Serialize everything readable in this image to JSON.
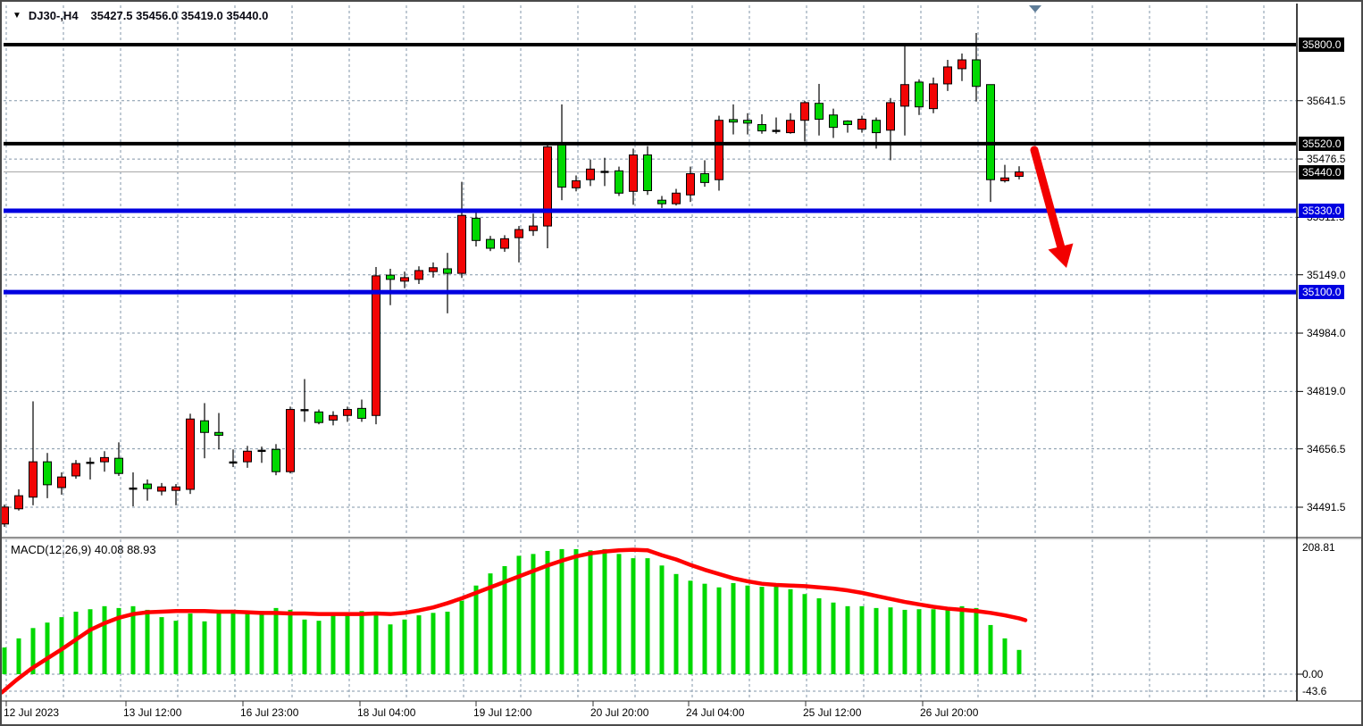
{
  "window": {
    "title_symbol": "DJ30-,H4",
    "title_ohlc": "35427.5 35456.0 35419.0 35440.0",
    "triangle_glyph": "▼"
  },
  "colors": {
    "bull": "#00d800",
    "bear": "#f20505",
    "doji": "#000000",
    "macd_bar": "#00d800",
    "macd_signal": "#ff0000",
    "level_black": "#000000",
    "level_blue": "#0000e0",
    "current_price_line": "#a8a8a8",
    "grid": "#8195a8",
    "arrow": "#f20000",
    "bar_marker": "#5f7d98"
  },
  "macd_panel": {
    "label": "MACD(12,26,9) 40.08 88.93",
    "axis_labels": [
      {
        "text": "208.81",
        "value": 208.81
      },
      {
        "text": "0.00",
        "value": 0
      },
      {
        "text": "-43.6",
        "value": -43.6
      }
    ]
  },
  "price_axis": {
    "plain_labels": [
      {
        "text": "35641.5",
        "price": 35641.5
      },
      {
        "text": "35476.5",
        "price": 35476.5
      },
      {
        "text": "35311.5",
        "price": 35311.5
      },
      {
        "text": "35149.0",
        "price": 35149.0
      },
      {
        "text": "34984.0",
        "price": 34984.0
      },
      {
        "text": "34819.0",
        "price": 34819.0
      },
      {
        "text": "34656.5",
        "price": 34656.5
      },
      {
        "text": "34491.5",
        "price": 34491.5
      }
    ],
    "badge_labels": [
      {
        "text": "35800.0",
        "price": 35800.0,
        "style": "badge-black"
      },
      {
        "text": "35520.0",
        "price": 35520.0,
        "style": "badge-black"
      },
      {
        "text": "35440.0",
        "price": 35440.0,
        "style": "badge-black"
      },
      {
        "text": "35330.0",
        "price": 35330.0,
        "style": "badge-blue"
      },
      {
        "text": "35100.0",
        "price": 35100.0,
        "style": "badge-blue"
      }
    ]
  },
  "time_axis": {
    "labels": [
      {
        "text": "12 Jul 2023",
        "x": 5
      },
      {
        "text": "13 Jul 12:00",
        "x": 139
      },
      {
        "text": "16 Jul 23:00",
        "x": 270
      },
      {
        "text": "18 Jul 04:00",
        "x": 401
      },
      {
        "text": "19 Jul 12:00",
        "x": 531
      },
      {
        "text": "20 Jul 20:00",
        "x": 662
      },
      {
        "text": "24 Jul 04:00",
        "x": 769
      },
      {
        "text": "25 Jul 12:00",
        "x": 900
      },
      {
        "text": "26 Jul 20:00",
        "x": 1031
      }
    ]
  },
  "chart_data": [
    {
      "type": "candlestick",
      "symbol": "DJ30-",
      "timeframe": "H4",
      "title": "DJ30-,H4 35427.5 35456.0 35419.0 35440.0",
      "last_ohlc": {
        "open": 35427.5,
        "high": 35456.0,
        "low": 35419.0,
        "close": 35440.0
      },
      "ylim": [
        34400,
        35920
      ],
      "grid": true,
      "levels": [
        {
          "price": 35800.0,
          "color": "black",
          "thickness": 4
        },
        {
          "price": 35520.0,
          "color": "black",
          "thickness": 4
        },
        {
          "price": 35330.0,
          "color": "blue",
          "thickness": 5
        },
        {
          "price": 35100.0,
          "color": "blue",
          "thickness": 5
        }
      ],
      "current_price": 35440.0,
      "annotation_arrow": {
        "from_price": 35505,
        "to_price": 35170,
        "direction": "down-right"
      },
      "candles": [
        [
          34492,
          34499,
          34436,
          34444,
          "d"
        ],
        [
          34524,
          34542,
          34482,
          34487,
          "d"
        ],
        [
          34620,
          34791,
          34497,
          34520,
          "d"
        ],
        [
          34555,
          34645,
          34517,
          34620,
          "u"
        ],
        [
          34577,
          34590,
          34527,
          34547,
          "d"
        ],
        [
          34615,
          34625,
          34572,
          34580,
          "d"
        ],
        [
          34622,
          34632,
          34570,
          34617,
          "j"
        ],
        [
          34632,
          34650,
          34592,
          34620,
          "d"
        ],
        [
          34587,
          34675,
          34580,
          34630,
          "u"
        ],
        [
          34547,
          34590,
          34494,
          34544,
          "j"
        ],
        [
          34544,
          34570,
          34510,
          34557,
          "u"
        ],
        [
          34549,
          34560,
          34525,
          34537,
          "d"
        ],
        [
          34549,
          34557,
          34497,
          34539,
          "d"
        ],
        [
          34741,
          34756,
          34529,
          34542,
          "d"
        ],
        [
          34703,
          34786,
          34630,
          34736,
          "u"
        ],
        [
          34695,
          34758,
          34655,
          34703,
          "u"
        ],
        [
          34622,
          34655,
          34605,
          34618,
          "j"
        ],
        [
          34650,
          34665,
          34603,
          34620,
          "d"
        ],
        [
          34653,
          34663,
          34617,
          34651,
          "j"
        ],
        [
          34592,
          34670,
          34582,
          34655,
          "u"
        ],
        [
          34768,
          34776,
          34587,
          34592,
          "d"
        ],
        [
          34768,
          34854,
          34733,
          34766,
          "j"
        ],
        [
          34731,
          34768,
          34726,
          34761,
          "u"
        ],
        [
          34751,
          34763,
          34723,
          34738,
          "d"
        ],
        [
          34768,
          34776,
          34733,
          34751,
          "d"
        ],
        [
          34743,
          34796,
          34733,
          34771,
          "u"
        ],
        [
          35146,
          35171,
          34726,
          34751,
          "d"
        ],
        [
          35136,
          35166,
          35063,
          35148,
          "u"
        ],
        [
          35141,
          35158,
          35111,
          35131,
          "d"
        ],
        [
          35161,
          35173,
          35123,
          35136,
          "d"
        ],
        [
          35169,
          35184,
          35141,
          35158,
          "d"
        ],
        [
          35153,
          35211,
          35040,
          35166,
          "u"
        ],
        [
          35317,
          35412,
          35140,
          35153,
          "d"
        ],
        [
          35246,
          35324,
          35229,
          35309,
          "u"
        ],
        [
          35224,
          35259,
          35216,
          35249,
          "u"
        ],
        [
          35251,
          35261,
          35214,
          35224,
          "d"
        ],
        [
          35277,
          35287,
          35184,
          35254,
          "d"
        ],
        [
          35287,
          35322,
          35259,
          35274,
          "d"
        ],
        [
          35511,
          35518,
          35224,
          35287,
          "d"
        ],
        [
          35397,
          35631,
          35360,
          35520,
          "u"
        ],
        [
          35415,
          35430,
          35385,
          35395,
          "d"
        ],
        [
          35448,
          35475,
          35400,
          35418,
          "d"
        ],
        [
          35443,
          35480,
          35400,
          35440,
          "j"
        ],
        [
          35380,
          35455,
          35372,
          35443,
          "u"
        ],
        [
          35488,
          35506,
          35347,
          35385,
          "d"
        ],
        [
          35387,
          35513,
          35375,
          35488,
          "u"
        ],
        [
          35350,
          35372,
          35338,
          35360,
          "u"
        ],
        [
          35380,
          35392,
          35345,
          35350,
          "d"
        ],
        [
          35435,
          35455,
          35355,
          35375,
          "d"
        ],
        [
          35410,
          35473,
          35398,
          35435,
          "u"
        ],
        [
          35586,
          35599,
          35387,
          35418,
          "d"
        ],
        [
          35581,
          35631,
          35546,
          35588,
          "u"
        ],
        [
          35578,
          35606,
          35546,
          35586,
          "u"
        ],
        [
          35556,
          35603,
          35548,
          35574,
          "u"
        ],
        [
          35558,
          35594,
          35548,
          35556,
          "j"
        ],
        [
          35586,
          35606,
          35548,
          35551,
          "d"
        ],
        [
          35636,
          35641,
          35526,
          35586,
          "d"
        ],
        [
          35589,
          35689,
          35543,
          35634,
          "u"
        ],
        [
          35566,
          35619,
          35536,
          35601,
          "u"
        ],
        [
          35574,
          35586,
          35551,
          35584,
          "u"
        ],
        [
          35589,
          35599,
          35551,
          35561,
          "d"
        ],
        [
          35551,
          35594,
          35506,
          35586,
          "u"
        ],
        [
          35636,
          35649,
          35473,
          35558,
          "d"
        ],
        [
          35687,
          35797,
          35543,
          35626,
          "d"
        ],
        [
          35624,
          35702,
          35601,
          35694,
          "u"
        ],
        [
          35689,
          35707,
          35606,
          35619,
          "d"
        ],
        [
          35737,
          35757,
          35669,
          35689,
          "d"
        ],
        [
          35757,
          35775,
          35697,
          35732,
          "d"
        ],
        [
          35682,
          35833,
          35639,
          35757,
          "u"
        ],
        [
          35687,
          35687,
          35355,
          35418,
          "u"
        ],
        [
          35423,
          35460,
          35410,
          35415,
          "d"
        ],
        [
          35427.5,
          35456,
          35419,
          35440,
          "d"
        ]
      ]
    },
    {
      "type": "bar",
      "name": "MACD(12,26,9)",
      "macd_current": 40.08,
      "signal_current": 88.93,
      "ylim": [
        -43.6,
        208.81
      ],
      "zero_line": 0.0,
      "histogram": [
        44,
        59,
        76,
        85,
        94,
        103,
        107,
        112,
        109,
        112,
        106,
        94,
        88,
        100,
        87,
        101,
        106,
        101,
        104,
        109,
        106,
        90,
        88,
        100,
        99,
        104,
        97,
        82,
        90,
        97,
        101,
        103,
        121,
        146,
        166,
        178,
        195,
        198,
        203,
        206,
        206,
        204,
        206,
        198,
        191,
        191,
        179,
        165,
        154,
        149,
        143,
        150,
        146,
        144,
        146,
        140,
        132,
        125,
        118,
        112,
        112,
        109,
        110,
        106,
        107,
        107,
        110,
        112,
        109,
        81,
        59,
        40
      ],
      "signal_points": [
        [
          0,
          -30
        ],
        [
          16,
          -10
        ],
        [
          33,
          9
        ],
        [
          51,
          26
        ],
        [
          67,
          41
        ],
        [
          83,
          57
        ],
        [
          99,
          73
        ],
        [
          115,
          84
        ],
        [
          131,
          93
        ],
        [
          147,
          99
        ],
        [
          163,
          102
        ],
        [
          179,
          103
        ],
        [
          195,
          104
        ],
        [
          211,
          104
        ],
        [
          227,
          104
        ],
        [
          243,
          103
        ],
        [
          259,
          103
        ],
        [
          275,
          102
        ],
        [
          291,
          101
        ],
        [
          307,
          101
        ],
        [
          323,
          100
        ],
        [
          339,
          100
        ],
        [
          355,
          99
        ],
        [
          371,
          99
        ],
        [
          387,
          99
        ],
        [
          403,
          99
        ],
        [
          419,
          100
        ],
        [
          435,
          99
        ],
        [
          451,
          101
        ],
        [
          467,
          105
        ],
        [
          483,
          110
        ],
        [
          499,
          117
        ],
        [
          515,
          125
        ],
        [
          531,
          134
        ],
        [
          547,
          143
        ],
        [
          563,
          152
        ],
        [
          579,
          161
        ],
        [
          595,
          170
        ],
        [
          611,
          179
        ],
        [
          627,
          187
        ],
        [
          643,
          194
        ],
        [
          659,
          199
        ],
        [
          675,
          202
        ],
        [
          691,
          204
        ],
        [
          707,
          205
        ],
        [
          723,
          204
        ],
        [
          739,
          196
        ],
        [
          755,
          189
        ],
        [
          771,
          180
        ],
        [
          787,
          172
        ],
        [
          803,
          165
        ],
        [
          819,
          158
        ],
        [
          835,
          153
        ],
        [
          851,
          149
        ],
        [
          867,
          147
        ],
        [
          883,
          146
        ],
        [
          899,
          145
        ],
        [
          915,
          143
        ],
        [
          931,
          141
        ],
        [
          947,
          138
        ],
        [
          963,
          134
        ],
        [
          979,
          129
        ],
        [
          995,
          124
        ],
        [
          1011,
          119
        ],
        [
          1027,
          115
        ],
        [
          1043,
          111
        ],
        [
          1059,
          108
        ],
        [
          1075,
          106
        ],
        [
          1091,
          104
        ],
        [
          1107,
          101
        ],
        [
          1123,
          97
        ],
        [
          1139,
          92
        ],
        [
          1146,
          89
        ]
      ]
    }
  ]
}
